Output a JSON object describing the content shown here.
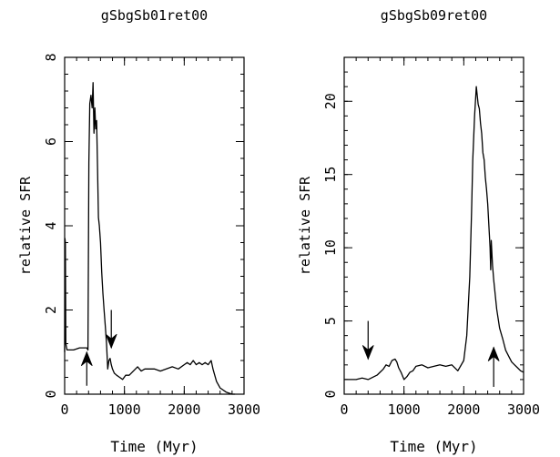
{
  "chart_data": [
    {
      "type": "line",
      "title": "gSbgSb01ret00",
      "xlabel": "Time (Myr)",
      "ylabel": "relative SFR",
      "xlim": [
        0,
        3000
      ],
      "ylim": [
        0,
        8
      ],
      "xticks": [
        0,
        1000,
        2000,
        3000
      ],
      "yticks": [
        0,
        2,
        4,
        6,
        8
      ],
      "x_minor_step": 200,
      "y_minor_step": 0.4,
      "series": [
        {
          "x": [
            0,
            5,
            12,
            20,
            40,
            80,
            150,
            250,
            330,
            370,
            390,
            405,
            420,
            440,
            460,
            475,
            490,
            505,
            520,
            535,
            550,
            565,
            580,
            600,
            620,
            640,
            660,
            680,
            700,
            720,
            740,
            760,
            780,
            800,
            830,
            870,
            920,
            970,
            1020,
            1080,
            1150,
            1220,
            1280,
            1340,
            1400,
            1500,
            1600,
            1700,
            1800,
            1900,
            2000,
            2050,
            2100,
            2150,
            2200,
            2250,
            2300,
            2350,
            2400,
            2450,
            2480,
            2500,
            2540,
            2600,
            2700,
            2800,
            2850
          ],
          "values": [
            1.0,
            3.7,
            3.6,
            1.2,
            1.05,
            1.05,
            1.05,
            1.1,
            1.1,
            1.1,
            1.05,
            5.5,
            6.9,
            7.1,
            6.8,
            7.4,
            6.2,
            6.8,
            6.3,
            6.5,
            5.4,
            4.2,
            4.0,
            3.6,
            2.9,
            2.4,
            2.0,
            1.6,
            1.2,
            0.6,
            0.8,
            0.85,
            0.7,
            0.6,
            0.5,
            0.45,
            0.4,
            0.35,
            0.45,
            0.45,
            0.55,
            0.65,
            0.55,
            0.6,
            0.6,
            0.6,
            0.55,
            0.6,
            0.65,
            0.6,
            0.7,
            0.75,
            0.7,
            0.8,
            0.7,
            0.75,
            0.7,
            0.75,
            0.7,
            0.8,
            0.6,
            0.5,
            0.3,
            0.15,
            0.05,
            0.0,
            0.0
          ]
        }
      ],
      "annotations": [
        {
          "type": "arrow",
          "direction": "up",
          "x": 370,
          "y_from": 0.2,
          "y_to": 1.0
        },
        {
          "type": "arrow",
          "direction": "down",
          "x": 780,
          "y_from": 2.0,
          "y_to": 1.1
        }
      ]
    },
    {
      "type": "line",
      "title": "gSbgSb09ret00",
      "xlabel": "Time (Myr)",
      "ylabel": "relative SFR",
      "xlim": [
        0,
        3000
      ],
      "ylim": [
        0,
        23
      ],
      "xticks": [
        0,
        1000,
        2000,
        3000
      ],
      "yticks": [
        0,
        5,
        10,
        15,
        20
      ],
      "x_minor_step": 200,
      "y_minor_step": 1,
      "series": [
        {
          "x": [
            0,
            100,
            200,
            300,
            400,
            500,
            550,
            600,
            650,
            700,
            750,
            800,
            850,
            880,
            910,
            950,
            1000,
            1050,
            1100,
            1150,
            1200,
            1300,
            1400,
            1500,
            1600,
            1700,
            1800,
            1900,
            2000,
            2050,
            2100,
            2130,
            2150,
            2180,
            2210,
            2240,
            2260,
            2280,
            2300,
            2320,
            2340,
            2360,
            2380,
            2400,
            2420,
            2440,
            2450,
            2460,
            2480,
            2500,
            2550,
            2600,
            2650,
            2700,
            2750,
            2800,
            2850,
            2900,
            2950,
            3000
          ],
          "values": [
            1.0,
            1.0,
            1.0,
            1.1,
            1.0,
            1.2,
            1.3,
            1.5,
            1.7,
            2.0,
            1.9,
            2.3,
            2.4,
            2.2,
            1.8,
            1.5,
            1.0,
            1.2,
            1.5,
            1.6,
            1.9,
            2.0,
            1.8,
            1.9,
            2.0,
            1.9,
            2.0,
            1.6,
            2.3,
            4.0,
            8.0,
            12.5,
            16.0,
            19.0,
            21.0,
            19.8,
            19.5,
            18.5,
            17.8,
            16.5,
            16.0,
            14.8,
            14.0,
            13.0,
            11.5,
            10.0,
            8.5,
            10.5,
            8.8,
            7.8,
            5.8,
            4.5,
            3.8,
            3.0,
            2.6,
            2.2,
            2.0,
            1.8,
            1.6,
            1.5
          ]
        }
      ],
      "annotations": [
        {
          "type": "arrow",
          "direction": "down",
          "x": 400,
          "y_from": 5.0,
          "y_to": 2.4
        },
        {
          "type": "arrow",
          "direction": "up",
          "x": 2500,
          "y_from": 0.5,
          "y_to": 3.2
        }
      ]
    }
  ]
}
